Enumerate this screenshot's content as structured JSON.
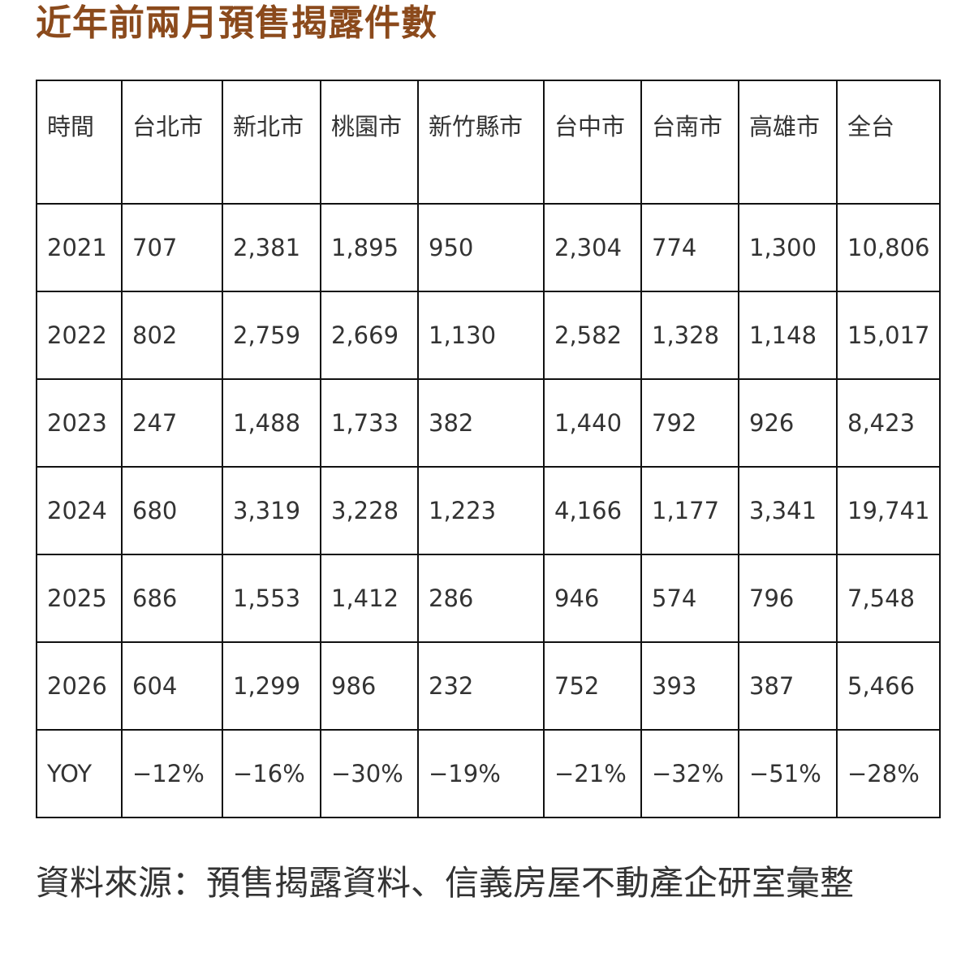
{
  "title": "近年前兩月預售揭露件數",
  "table": {
    "headers": [
      "時間",
      "台北市",
      "新北市",
      "桃園市",
      "新竹縣市",
      "台中市",
      "台南市",
      "高雄市",
      "全台"
    ],
    "rows": [
      [
        "2021",
        "707",
        "2,381",
        "1,895",
        "950",
        "2,304",
        "774",
        "1,300",
        "10,806"
      ],
      [
        "2022",
        "802",
        "2,759",
        "2,669",
        "1,130",
        "2,582",
        "1,328",
        "1,148",
        "15,017"
      ],
      [
        "2023",
        "247",
        "1,488",
        "1,733",
        "382",
        "1,440",
        "792",
        "926",
        "8,423"
      ],
      [
        "2024",
        "680",
        "3,319",
        "3,228",
        "1,223",
        "4,166",
        "1,177",
        "3,341",
        "19,741"
      ],
      [
        "2025",
        "686",
        "1,553",
        "1,412",
        "286",
        "946",
        "574",
        "796",
        "7,548"
      ],
      [
        "2026",
        "604",
        "1,299",
        "986",
        "232",
        "752",
        "393",
        "387",
        "5,466"
      ],
      [
        "YOY",
        "−12%",
        "−16%",
        "−30%",
        "−19%",
        "−21%",
        "−32%",
        "−51%",
        "−28%"
      ]
    ]
  },
  "source": "資料來源：預售揭露資料、信義房屋不動產企研室彙整",
  "colors": {
    "title": "#8b4a1c",
    "text": "#333333",
    "border": "#111111"
  }
}
